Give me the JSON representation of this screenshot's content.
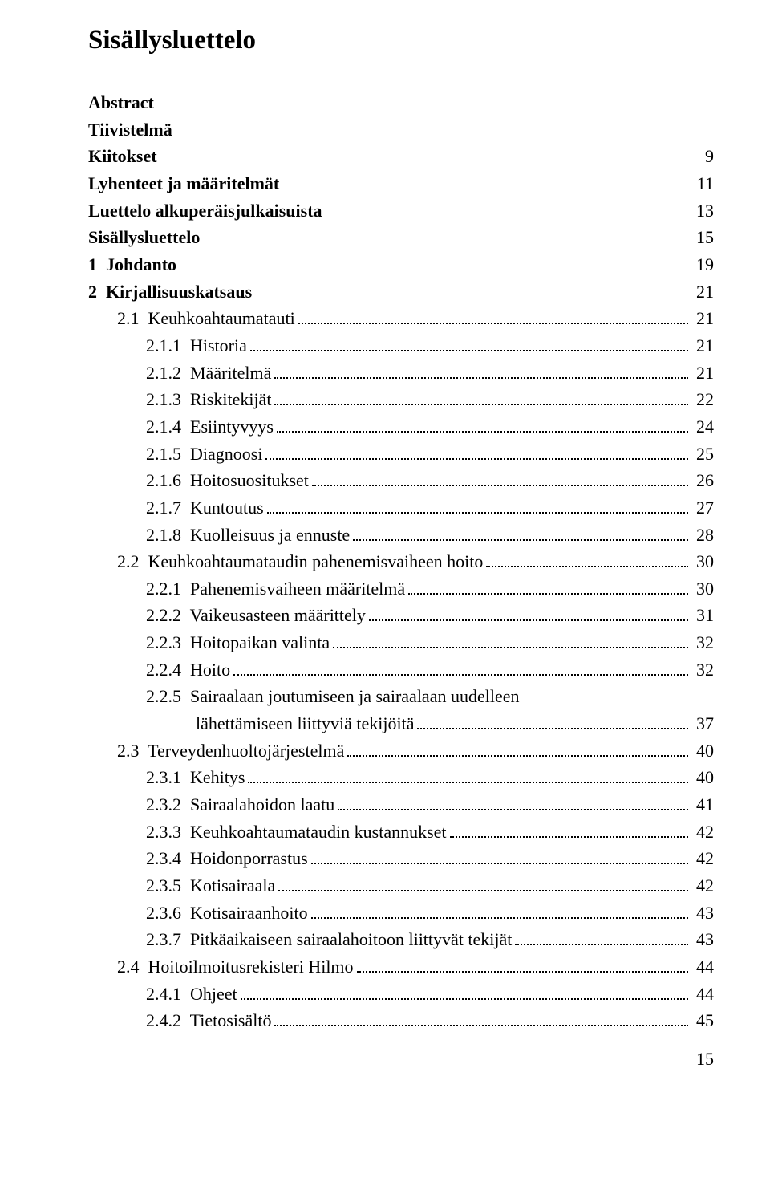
{
  "title": "Sisällysluettelo",
  "entries": [
    {
      "label": "Abstract",
      "indent": 0,
      "bold": true,
      "page": "",
      "leader": false
    },
    {
      "label": "Tiivistelmä",
      "indent": 0,
      "bold": true,
      "page": "",
      "leader": false
    },
    {
      "label": "Kiitokset",
      "indent": 0,
      "bold": true,
      "page": "9",
      "leader": false
    },
    {
      "label": "Lyhenteet ja määritelmät",
      "indent": 0,
      "bold": true,
      "page": "11",
      "leader": false
    },
    {
      "label": "Luettelo alkuperäisjulkaisuista",
      "indent": 0,
      "bold": true,
      "page": "13",
      "leader": false
    },
    {
      "label": "Sisällysluettelo",
      "indent": 0,
      "bold": true,
      "page": "15",
      "leader": false
    },
    {
      "label": "1  Johdanto",
      "indent": 0,
      "bold": true,
      "page": "19",
      "leader": false
    },
    {
      "label": "2  Kirjallisuuskatsaus",
      "indent": 0,
      "bold": true,
      "page": "21",
      "leader": false
    },
    {
      "label": "2.1  Keuhkoahtaumatauti",
      "indent": 1,
      "bold": false,
      "page": "21",
      "leader": true
    },
    {
      "label": "2.1.1  Historia",
      "indent": 2,
      "bold": false,
      "page": "21",
      "leader": true
    },
    {
      "label": "2.1.2  Määritelmä",
      "indent": 2,
      "bold": false,
      "page": "21",
      "leader": true
    },
    {
      "label": "2.1.3  Riskitekijät",
      "indent": 2,
      "bold": false,
      "page": "22",
      "leader": true
    },
    {
      "label": "2.1.4  Esiintyvyys",
      "indent": 2,
      "bold": false,
      "page": "24",
      "leader": true
    },
    {
      "label": "2.1.5  Diagnoosi",
      "indent": 2,
      "bold": false,
      "page": "25",
      "leader": true
    },
    {
      "label": "2.1.6  Hoitosuositukset",
      "indent": 2,
      "bold": false,
      "page": "26",
      "leader": true
    },
    {
      "label": "2.1.7  Kuntoutus",
      "indent": 2,
      "bold": false,
      "page": "27",
      "leader": true
    },
    {
      "label": "2.1.8  Kuolleisuus ja ennuste",
      "indent": 2,
      "bold": false,
      "page": "28",
      "leader": true
    },
    {
      "label": "2.2  Keuhkoahtaumataudin pahenemisvaiheen hoito",
      "indent": 1,
      "bold": false,
      "page": "30",
      "leader": true
    },
    {
      "label": "2.2.1  Pahenemisvaiheen määritelmä",
      "indent": 2,
      "bold": false,
      "page": "30",
      "leader": true
    },
    {
      "label": "2.2.2  Vaikeusasteen määrittely",
      "indent": 2,
      "bold": false,
      "page": "31",
      "leader": true
    },
    {
      "label": "2.2.3  Hoitopaikan valinta",
      "indent": 2,
      "bold": false,
      "page": "32",
      "leader": true
    },
    {
      "label": "2.2.4  Hoito",
      "indent": 2,
      "bold": false,
      "page": "32",
      "leader": true
    },
    {
      "label": "2.2.5  Sairaalaan joutumiseen ja sairaalaan uudelleen",
      "label2": "lähettämiseen liittyviä tekijöitä",
      "indent": 2,
      "bold": false,
      "page": "37",
      "leader": true,
      "multiline": true
    },
    {
      "label": "2.3  Terveydenhuoltojärjestelmä",
      "indent": 1,
      "bold": false,
      "page": "40",
      "leader": true
    },
    {
      "label": "2.3.1  Kehitys",
      "indent": 2,
      "bold": false,
      "page": "40",
      "leader": true
    },
    {
      "label": "2.3.2  Sairaalahoidon laatu",
      "indent": 2,
      "bold": false,
      "page": "41",
      "leader": true
    },
    {
      "label": "2.3.3  Keuhkoahtaumataudin kustannukset",
      "indent": 2,
      "bold": false,
      "page": "42",
      "leader": true
    },
    {
      "label": "2.3.4  Hoidonporrastus",
      "indent": 2,
      "bold": false,
      "page": "42",
      "leader": true
    },
    {
      "label": "2.3.5  Kotisairaala",
      "indent": 2,
      "bold": false,
      "page": "42",
      "leader": true
    },
    {
      "label": "2.3.6  Kotisairaanhoito",
      "indent": 2,
      "bold": false,
      "page": "43",
      "leader": true
    },
    {
      "label": "2.3.7  Pitkäaikaiseen sairaalahoitoon liittyvät tekijät",
      "indent": 2,
      "bold": false,
      "page": "43",
      "leader": true
    },
    {
      "label": "2.4  Hoitoilmoitusrekisteri Hilmo",
      "indent": 1,
      "bold": false,
      "page": "44",
      "leader": true
    },
    {
      "label": "2.4.1  Ohjeet",
      "indent": 2,
      "bold": false,
      "page": "44",
      "leader": true
    },
    {
      "label": "2.4.2  Tietosisältö",
      "indent": 2,
      "bold": false,
      "page": "45",
      "leader": true
    }
  ],
  "bottomPage": "15",
  "colors": {
    "text": "#000000",
    "background": "#ffffff"
  },
  "typography": {
    "titleSize": 33,
    "bodySize": 22,
    "fontFamily": "Times New Roman"
  }
}
